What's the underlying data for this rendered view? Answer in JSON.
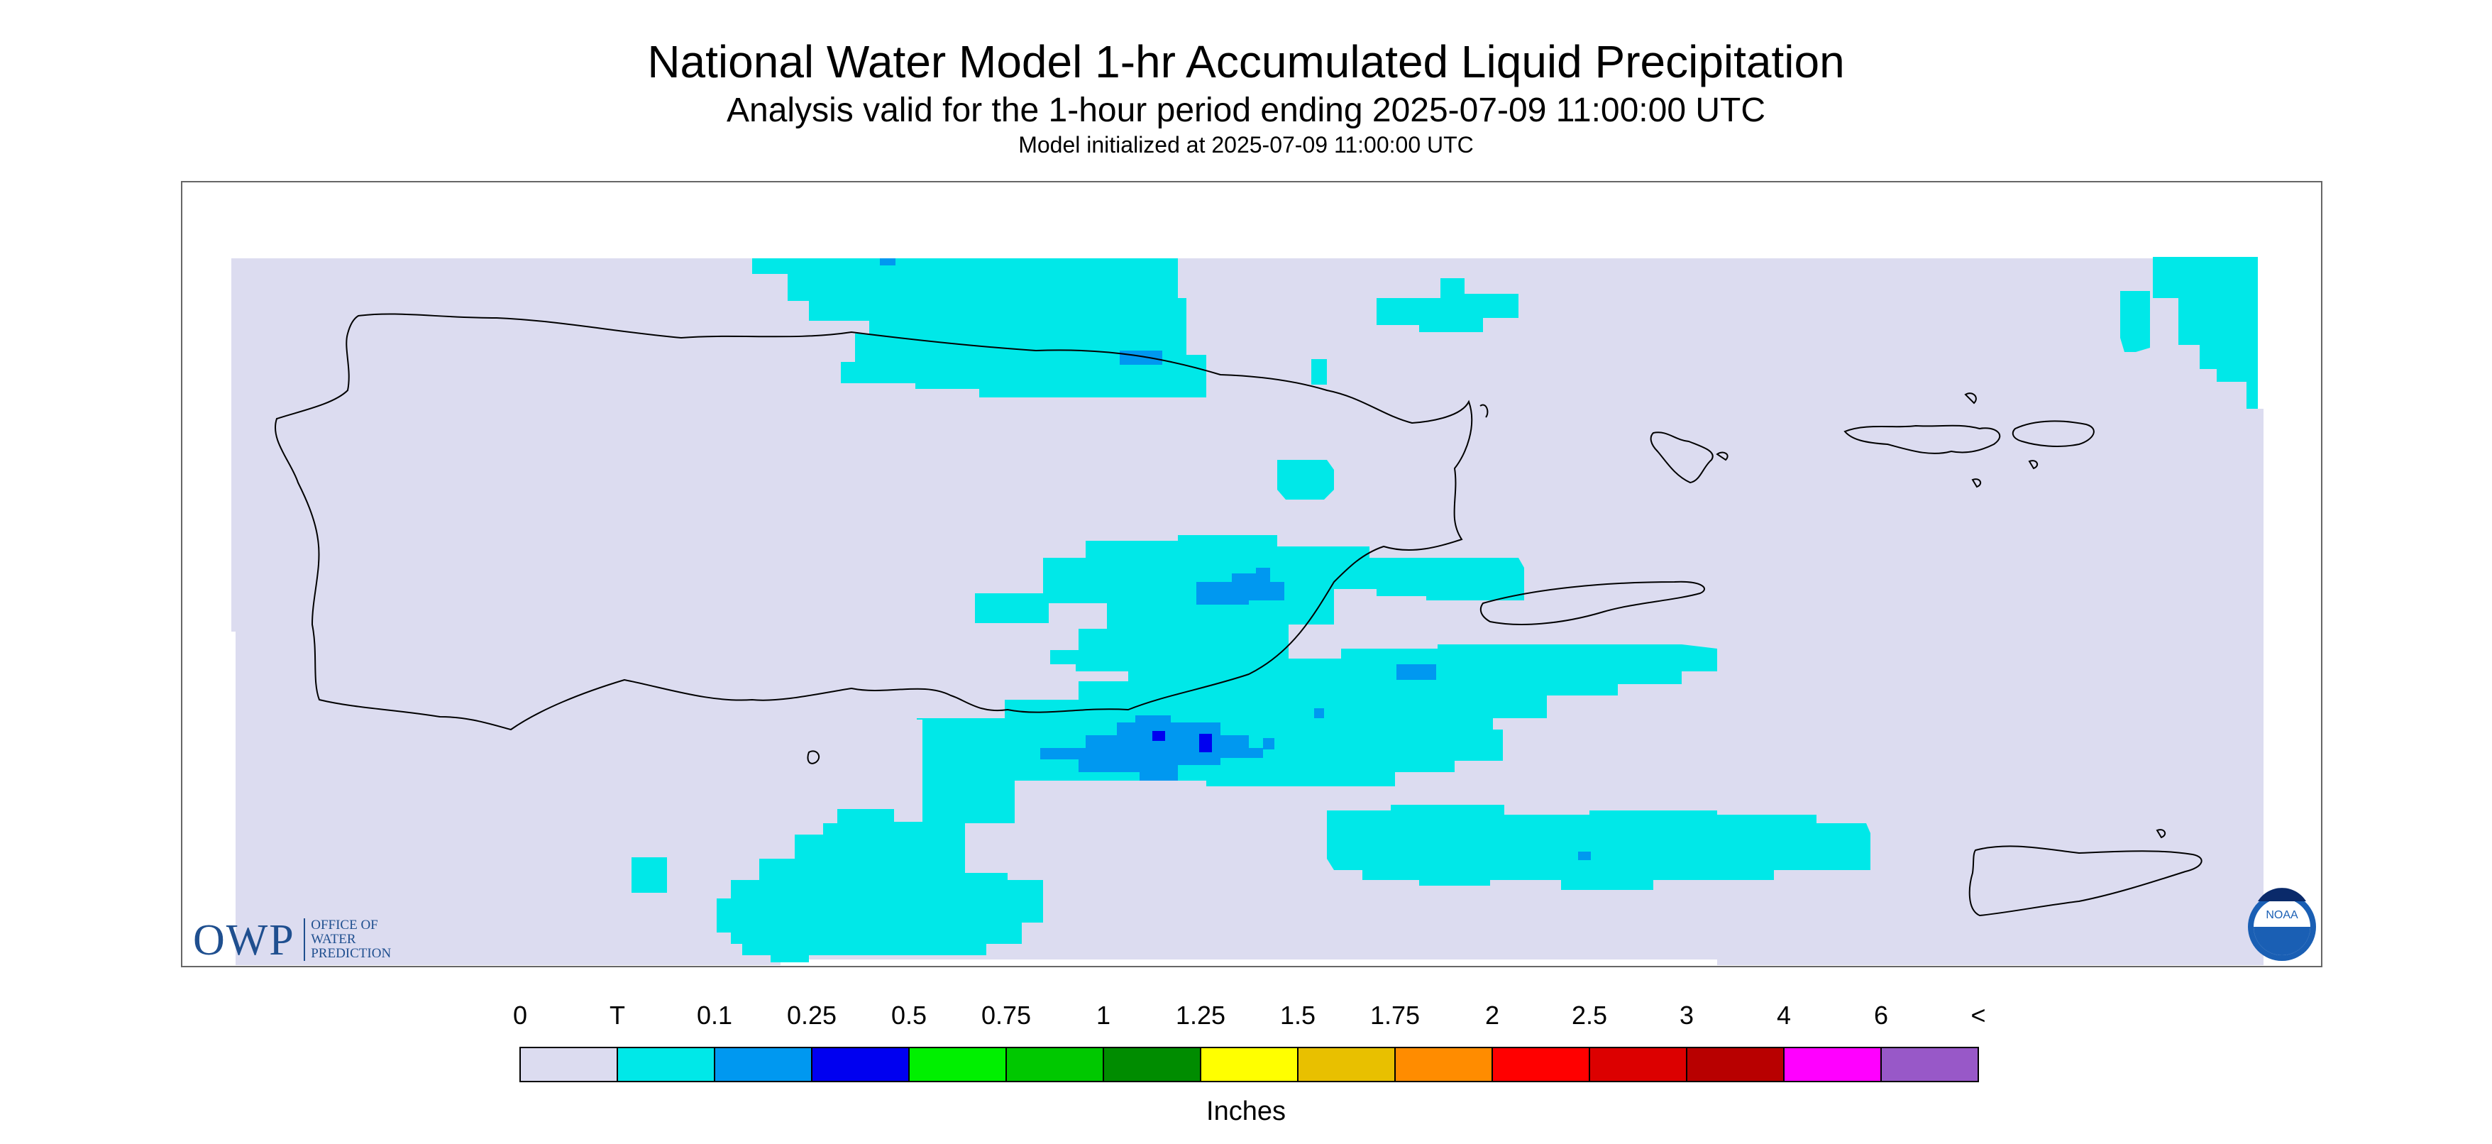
{
  "header": {
    "title": "National Water Model 1-hr Accumulated Liquid Precipitation",
    "subtitle": "Analysis valid for the 1-hour period ending 2025-07-09 11:00:00 UTC",
    "init": "Model initialized at 2025-07-09 11:00:00 UTC"
  },
  "legend": {
    "labels": [
      "0",
      "T",
      "0.1",
      "0.25",
      "0.5",
      "0.75",
      "1",
      "1.25",
      "1.5",
      "1.75",
      "2",
      "2.5",
      "3",
      "4",
      "6",
      "<"
    ],
    "colors": [
      "#dcdcf0",
      "#00e8e8",
      "#0098f0",
      "#0000f0",
      "#00f000",
      "#00c800",
      "#008c00",
      "#ffff00",
      "#e8c000",
      "#ff8c00",
      "#ff0000",
      "#dc0000",
      "#b80000",
      "#ff00ff",
      "#9858c8"
    ],
    "units": "Inches"
  },
  "logos": {
    "owp_big": "OWP",
    "owp_small": [
      "OFFICE OF",
      "WATER",
      "PREDICTION"
    ],
    "noaa": "NOAA"
  },
  "colors": {
    "background_domain": "#dcdcf0",
    "trace": "#00e8e8",
    "light_blue": "#0098f0",
    "blue": "#0000f0"
  }
}
